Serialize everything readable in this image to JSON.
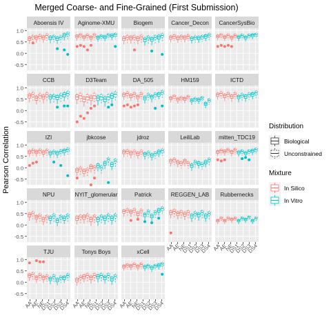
{
  "chart_data": {
    "type": "boxplot",
    "title": "Merged Coarse- and Fine-Grained (First Submission)",
    "xlabel": "",
    "ylabel": "Pearson Correlation",
    "ylim": [
      -0.75,
      1.1
    ],
    "yticks": [
      1.0,
      0.5,
      0.0,
      -0.5
    ],
    "ytick_labels": [
      "1.0",
      "0.5",
      "0.0",
      "-0.5"
    ],
    "x_categories": [
      "AA",
      "AE",
      "NE",
      "DS1",
      "DS2",
      "DS3",
      "DS4"
    ],
    "grid": true,
    "legend_position": "right",
    "legends": [
      {
        "title": "Distribution",
        "entries": [
          {
            "label": "Biological",
            "linetype": "solid"
          },
          {
            "label": "Unconstrained",
            "linetype": "dashed"
          }
        ]
      },
      {
        "title": "Mixture",
        "entries": [
          {
            "label": "In Silico",
            "color": "#F8766D"
          },
          {
            "label": "In Vitro",
            "color": "#00BFC4"
          }
        ]
      }
    ],
    "series_colors": {
      "in_silico": "#F8766D",
      "in_vitro": "#00BFC4"
    },
    "facet_columns": 5,
    "box_layout": [
      "S",
      "S",
      "S",
      "S",
      "S",
      "S",
      "V",
      "V",
      "V",
      "V",
      "V",
      "V"
    ],
    "facets": [
      {
        "name": "Aboensis IV",
        "medians": [
          0.65,
          0.72,
          0.7,
          0.75,
          0.7,
          0.78,
          0.68,
          0.72,
          0.65,
          0.7,
          0.8,
          0.85
        ],
        "spread": 0.18,
        "outliers": [
          [
            1,
            0.45
          ],
          [
            8,
            0.2
          ],
          [
            10,
            0.15
          ],
          [
            11,
            -0.05
          ]
        ]
      },
      {
        "name": "Aginome-XMU",
        "medians": [
          0.75,
          0.8,
          0.72,
          0.78,
          0.7,
          0.8,
          0.7,
          0.75,
          0.72,
          0.8,
          0.78,
          0.82
        ],
        "spread": 0.15,
        "outliers": [
          [
            0,
            0.3
          ],
          [
            1,
            0.35
          ],
          [
            2,
            0.3
          ],
          [
            3,
            0.15
          ],
          [
            4,
            0.35
          ],
          [
            11,
            0.3
          ]
        ]
      },
      {
        "name": "Biogem",
        "medians": [
          0.65,
          0.7,
          0.68,
          0.7,
          0.65,
          0.72,
          0.6,
          0.68,
          0.62,
          0.7,
          0.72,
          0.78
        ],
        "spread": 0.2,
        "outliers": [
          [
            3,
            0.15
          ],
          [
            8,
            0.1
          ],
          [
            11,
            -0.05
          ]
        ]
      },
      {
        "name": "Cancer_Decon",
        "medians": [
          0.7,
          0.75,
          0.68,
          0.72,
          0.7,
          0.75,
          0.65,
          0.7,
          0.68,
          0.72,
          0.75,
          0.8
        ],
        "spread": 0.17,
        "outliers": []
      },
      {
        "name": "CancerSysBio",
        "medians": [
          0.75,
          0.8,
          0.72,
          0.78,
          0.7,
          0.78,
          0.72,
          0.78,
          0.7,
          0.78,
          0.8,
          0.82
        ],
        "spread": 0.14,
        "outliers": [
          [
            0,
            0.3
          ],
          [
            1,
            0.35
          ],
          [
            2,
            0.3
          ],
          [
            3,
            0.35
          ],
          [
            4,
            0.3
          ]
        ]
      },
      {
        "name": "CCB",
        "medians": [
          0.65,
          0.7,
          0.55,
          0.65,
          0.6,
          0.7,
          0.6,
          0.62,
          0.58,
          0.65,
          0.7,
          0.75
        ],
        "spread": 0.22,
        "outliers": [
          [
            8,
            0.15
          ],
          [
            10,
            0.2
          ],
          [
            11,
            0.2
          ]
        ]
      },
      {
        "name": "D3Team",
        "medians": [
          0.6,
          0.65,
          0.5,
          0.6,
          0.55,
          0.65,
          0.55,
          0.6,
          0.5,
          0.6,
          0.65,
          0.72
        ],
        "spread": 0.25,
        "outliers": [
          [
            0,
            -0.5
          ],
          [
            1,
            -0.25
          ],
          [
            2,
            -0.35
          ],
          [
            3,
            -0.1
          ],
          [
            4,
            0.1
          ],
          [
            5,
            0.2
          ],
          [
            9,
            0.15
          ],
          [
            10,
            0.25
          ]
        ]
      },
      {
        "name": "DA_505",
        "medians": [
          0.7,
          0.75,
          0.65,
          0.72,
          0.6,
          0.72,
          0.55,
          0.68,
          0.6,
          0.7,
          0.72,
          0.8
        ],
        "spread": 0.18,
        "outliers": [
          [
            0,
            0.2
          ],
          [
            1,
            0.25
          ],
          [
            2,
            0.15
          ],
          [
            3,
            0.2
          ],
          [
            4,
            0.25
          ],
          [
            9,
            0.1
          ],
          [
            11,
            0.2
          ]
        ]
      },
      {
        "name": "HM159",
        "medians": [
          0.55,
          0.62,
          0.5,
          0.55,
          0.52,
          0.6,
          0.45,
          0.5,
          0.48,
          0.55,
          0.3,
          0.45
        ],
        "spread": 0.15,
        "outliers": []
      },
      {
        "name": "ICTD",
        "medians": [
          0.7,
          0.75,
          0.65,
          0.72,
          0.62,
          0.72,
          0.6,
          0.68,
          0.62,
          0.7,
          0.72,
          0.78
        ],
        "spread": 0.18,
        "outliers": []
      },
      {
        "name": "IZI",
        "medians": [
          0.7,
          0.75,
          0.7,
          0.75,
          0.68,
          0.75,
          0.65,
          0.7,
          0.65,
          0.72,
          0.75,
          0.8
        ],
        "spread": 0.17,
        "outliers": [
          [
            0,
            0.1
          ],
          [
            1,
            0.2
          ],
          [
            2,
            0.25
          ],
          [
            7,
            0.25
          ],
          [
            9,
            0.1
          ],
          [
            11,
            -0.35
          ]
        ]
      },
      {
        "name": "jbkcose",
        "medians": [
          -0.1,
          -0.05,
          -0.15,
          -0.1,
          0.05,
          0.0,
          0.1,
          0.0,
          0.2,
          0.35,
          0.15,
          0.3
        ],
        "spread": 0.2,
        "outliers": [
          [
            0,
            -0.45
          ],
          [
            4,
            -0.75
          ],
          [
            5,
            -0.45
          ],
          [
            9,
            -0.65
          ]
        ]
      },
      {
        "name": "jdroz",
        "medians": [
          0.7,
          0.72,
          0.65,
          0.7,
          0.62,
          0.7,
          0.6,
          0.65,
          0.55,
          0.62,
          0.7,
          0.75
        ],
        "spread": 0.18,
        "outliers": []
      },
      {
        "name": "LeiliLab",
        "medians": [
          0.3,
          0.35,
          0.25,
          0.2,
          0.3,
          0.2,
          0.1,
          0.25,
          0.2,
          0.15,
          0.25,
          0.35
        ],
        "spread": 0.18,
        "outliers": []
      },
      {
        "name": "mitten_TDC19",
        "medians": [
          0.7,
          0.75,
          0.72,
          0.78,
          0.7,
          0.78,
          0.68,
          0.72,
          0.65,
          0.72,
          0.75,
          0.8
        ],
        "spread": 0.15,
        "outliers": [
          [
            0,
            0.35
          ],
          [
            1,
            0.3
          ],
          [
            2,
            0.35
          ],
          [
            7,
            0.4
          ],
          [
            8,
            0.45
          ],
          [
            9,
            0.35
          ]
        ]
      },
      {
        "name": "NPU",
        "medians": [
          0.45,
          0.5,
          0.35,
          0.4,
          0.25,
          0.35,
          0.3,
          0.4,
          0.2,
          0.35,
          0.3,
          0.4
        ],
        "spread": 0.2,
        "outliers": []
      },
      {
        "name": "NYIT_glomerular",
        "medians": [
          0.3,
          0.35,
          0.35,
          0.4,
          0.25,
          0.35,
          0.25,
          0.35,
          0.3,
          0.4,
          0.3,
          0.4
        ],
        "spread": 0.22,
        "outliers": []
      },
      {
        "name": "Patrick",
        "medians": [
          0.6,
          0.65,
          0.58,
          0.65,
          0.5,
          0.62,
          0.45,
          0.58,
          0.4,
          0.55,
          0.65,
          0.72
        ],
        "spread": 0.18,
        "outliers": [
          [
            2,
            0.2
          ],
          [
            4,
            0.25
          ],
          [
            6,
            0.15
          ],
          [
            8,
            0.1
          ],
          [
            10,
            0.3
          ]
        ]
      },
      {
        "name": "REGGEN_LAB",
        "medians": [
          0.55,
          0.6,
          0.5,
          0.55,
          0.48,
          0.55,
          0.4,
          0.5,
          0.45,
          0.55,
          0.4,
          0.5
        ],
        "spread": 0.2,
        "outliers": [
          [
            0,
            -0.35
          ]
        ]
      },
      {
        "name": "Rubbernecks",
        "medians": [
          0.2,
          0.3,
          0.2,
          0.3,
          0.25,
          0.3,
          0.2,
          0.3,
          0.25,
          0.35,
          0.2,
          0.3
        ],
        "spread": 0.12,
        "outliers": []
      },
      {
        "name": "TJU",
        "medians": [
          0.3,
          0.35,
          0.2,
          0.3,
          0.2,
          0.25,
          0.15,
          0.25,
          0.1,
          0.2,
          0.2,
          0.3
        ],
        "spread": 0.18,
        "outliers": [
          [
            0,
            0.85
          ],
          [
            2,
            0.95
          ],
          [
            3,
            0.9
          ],
          [
            4,
            0.9
          ]
        ]
      },
      {
        "name": "Tonys Boys",
        "medians": [
          0.1,
          0.2,
          0.25,
          0.3,
          0.2,
          0.3,
          0.25,
          0.3,
          0.2,
          0.3,
          0.15,
          0.25
        ],
        "spread": 0.2,
        "outliers": []
      },
      {
        "name": "xCell",
        "medians": [
          0.7,
          0.75,
          0.72,
          0.78,
          0.7,
          0.78,
          0.68,
          0.72,
          0.65,
          0.72,
          0.75,
          0.8
        ],
        "spread": 0.15,
        "outliers": [
          [
            11,
            0.35
          ]
        ]
      }
    ]
  }
}
